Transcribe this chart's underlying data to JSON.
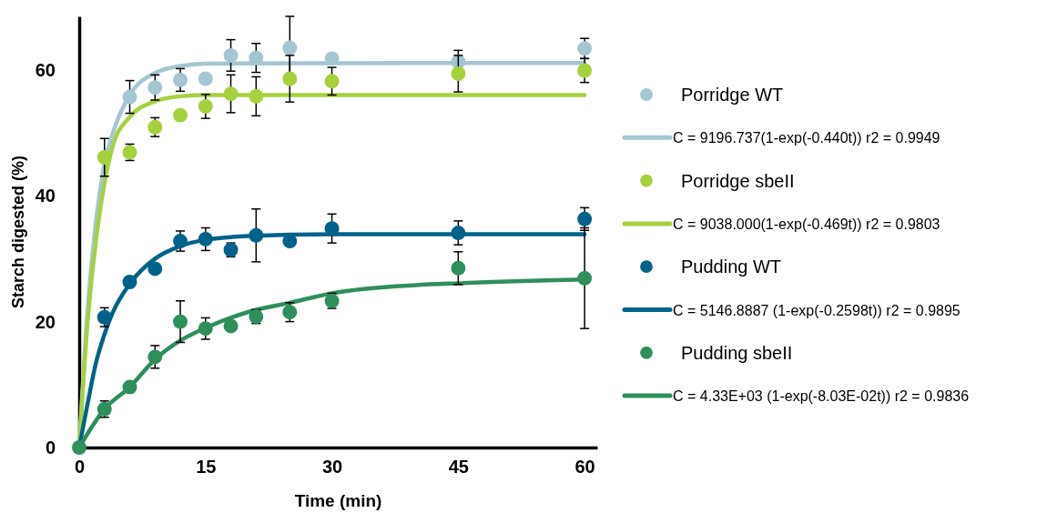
{
  "chart_data": {
    "type": "scatter",
    "xlabel": "Time (min)",
    "ylabel": "Starch digested (%)",
    "xlim": [
      0,
      61.5
    ],
    "ylim": [
      0,
      68.5
    ],
    "xticks": [
      0,
      15,
      30,
      45,
      60
    ],
    "yticks": [
      0,
      20,
      40,
      60
    ],
    "grid": false,
    "legend": "right",
    "x": [
      0,
      3,
      6,
      9,
      12,
      15,
      18,
      21,
      25,
      30,
      45,
      60
    ],
    "series": [
      {
        "name": "Porridge WT",
        "marker": "circle",
        "color": "#a3c6d2",
        "values": [
          null,
          null,
          55.7,
          57.2,
          58.4,
          58.6,
          62.3,
          61.9,
          63.5,
          61.8,
          61.3,
          63.4
        ],
        "errors": [
          null,
          null,
          2.6,
          2,
          1.8,
          null,
          2.5,
          2.3,
          5,
          null,
          1.8,
          1.6
        ]
      },
      {
        "name": "C = 9196.737(1-exp(-0.440t)) r2 = 0.9949",
        "type": "line",
        "color": "#a3c6d2",
        "x": [
          0,
          1,
          2,
          3,
          4,
          6,
          9,
          12,
          15,
          60
        ],
        "values": [
          0,
          22,
          36,
          45,
          50,
          56,
          59.5,
          60.6,
          61,
          61.1
        ]
      },
      {
        "name": "Porridge sbeII",
        "marker": "circle",
        "color": "#a5d13e",
        "values": [
          null,
          46.1,
          46.9,
          50.9,
          52.8,
          54.2,
          56.2,
          55.8,
          58.6,
          58.2,
          59.4,
          59.9
        ],
        "errors": [
          null,
          3,
          1.3,
          1.5,
          null,
          1.9,
          3,
          3.1,
          3.7,
          2.2,
          2.9,
          1.9
        ]
      },
      {
        "name": "C = 9038.000(1-exp(-0.469t)) r2 = 0.9803",
        "type": "line",
        "color": "#a5d13e",
        "x": [
          0,
          1,
          2,
          3,
          4,
          6,
          9,
          12,
          15,
          60
        ],
        "values": [
          0,
          20,
          33,
          42,
          48,
          52.5,
          55,
          55.8,
          56,
          56
        ]
      },
      {
        "name": "Pudding WT",
        "marker": "circle",
        "color": "#00628a",
        "values": [
          null,
          20.7,
          26.3,
          28.4,
          32.8,
          33.1,
          31.4,
          33.7,
          32.8,
          34.8,
          34.1,
          36.3
        ],
        "errors": [
          null,
          1.5,
          null,
          null,
          1.6,
          1.8,
          1.1,
          4.2,
          null,
          2.3,
          1.9,
          1.8
        ]
      },
      {
        "name": "C = 5146.8887 (1-exp(-0.2598t)) r2 = 0.9895",
        "type": "line",
        "color": "#00628a",
        "x": [
          0,
          1,
          2,
          3,
          4,
          6,
          9,
          12,
          15,
          20,
          30,
          60
        ],
        "values": [
          0,
          7,
          13.5,
          18,
          21.5,
          26,
          30,
          32,
          33,
          33.6,
          33.9,
          33.9
        ]
      },
      {
        "name": "Pudding sbeII",
        "marker": "circle",
        "color": "#2f8f5b",
        "values": [
          0,
          6.1,
          9.6,
          14.4,
          20,
          18.9,
          19.3,
          20.8,
          21.5,
          23.3,
          28.5,
          26.9
        ],
        "errors": [
          null,
          1.3,
          null,
          1.8,
          3.3,
          1.7,
          null,
          1.1,
          1.5,
          1.2,
          2.6,
          8
        ]
      },
      {
        "name": "C = 4.33E+03 (1-exp(-8.03E-02t)) r2 = 0.9836",
        "type": "line",
        "color": "#2f8f5b",
        "x": [
          0,
          3,
          6,
          9,
          12,
          15,
          20,
          25,
          30,
          40,
          45,
          60
        ],
        "values": [
          0,
          6.1,
          9.6,
          14,
          17,
          19,
          21.5,
          23,
          24.5,
          25.8,
          26.1,
          26.7
        ]
      }
    ]
  }
}
